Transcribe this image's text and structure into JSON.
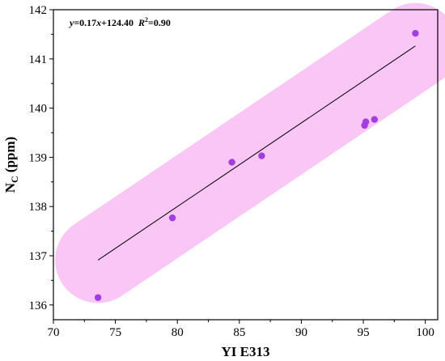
{
  "chart_data": {
    "type": "scatter",
    "title": "",
    "xlabel": "YI E313",
    "ylabel_main": "N",
    "ylabel_sub": "C",
    "ylabel_unit": " (ppm)",
    "xlim": [
      70,
      101
    ],
    "ylim": [
      135.7,
      142
    ],
    "x_ticks": [
      70,
      75,
      80,
      85,
      90,
      95,
      100
    ],
    "y_ticks": [
      136,
      137,
      138,
      139,
      140,
      141,
      142
    ],
    "points": [
      {
        "x": 73.6,
        "y": 136.15
      },
      {
        "x": 79.6,
        "y": 137.77
      },
      {
        "x": 84.4,
        "y": 138.9
      },
      {
        "x": 86.8,
        "y": 139.03
      },
      {
        "x": 95.1,
        "y": 139.65
      },
      {
        "x": 95.2,
        "y": 139.72
      },
      {
        "x": 95.9,
        "y": 139.77
      },
      {
        "x": 99.2,
        "y": 141.52
      }
    ],
    "fit_line": {
      "x_start": 73.6,
      "x_end": 99.2,
      "slope": 0.17,
      "intercept": 124.4
    },
    "equation_parts": {
      "y": "y",
      "mid": "=0.17",
      "x": "x",
      "rest": "+124.40  ",
      "r": "R",
      "sup": "2",
      "r_value": "=0.90"
    },
    "grid": false,
    "colors": {
      "point": "#a23de0",
      "band": "#f9c6f5",
      "line": "#000000",
      "axis": "#000000"
    }
  }
}
